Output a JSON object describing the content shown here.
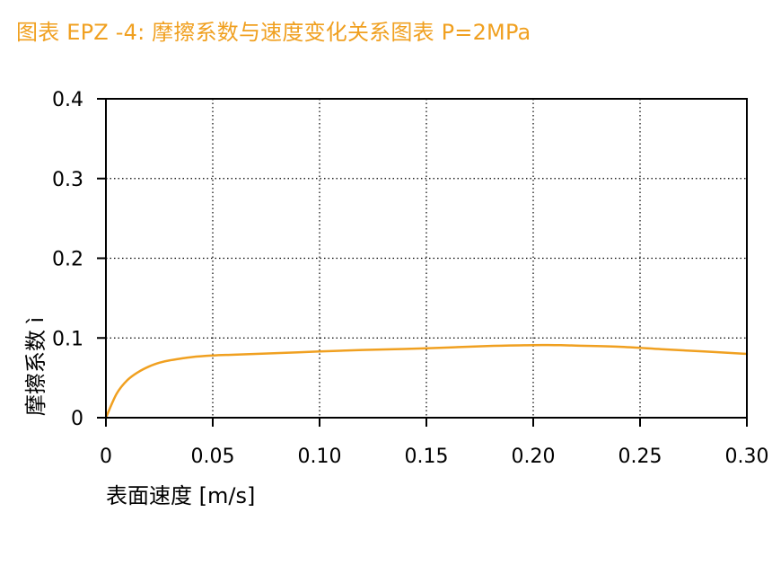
{
  "page": {
    "title": "图表   EPZ -4: 摩擦系数与速度变化关系图表 P=2MPa"
  },
  "colors": {
    "title": "#f0a020",
    "series": "#f0a020",
    "axis": "#000000",
    "grid": "#000000"
  },
  "chart_data": {
    "type": "line",
    "title": "图表   EPZ -4: 摩擦系数与速度变化关系图表 P=2MPa",
    "xlabel": "表面速度 [m/s]",
    "ylabel": "摩擦系数 ì",
    "xlim": [
      0,
      0.3
    ],
    "ylim": [
      0,
      0.4
    ],
    "x_ticks": [
      0,
      0.05,
      0.1,
      0.15,
      0.2,
      0.25,
      0.3
    ],
    "x_tick_labels": [
      "0",
      "0.05",
      "0.10",
      "0.15",
      "0.20",
      "0.25",
      "0.30"
    ],
    "y_ticks": [
      0,
      0.1,
      0.2,
      0.3,
      0.4
    ],
    "y_tick_labels": [
      "0",
      "0.1",
      "0.2",
      "0.3",
      "0.4"
    ],
    "grid": "dotted",
    "series": [
      {
        "color": "#f0a020",
        "x": [
          0,
          0.005,
          0.01,
          0.015,
          0.02,
          0.025,
          0.03,
          0.04,
          0.05,
          0.06,
          0.08,
          0.1,
          0.12,
          0.15,
          0.18,
          0.2,
          0.21,
          0.22,
          0.24,
          0.26,
          0.28,
          0.3
        ],
        "y": [
          0,
          0.03,
          0.047,
          0.057,
          0.064,
          0.069,
          0.072,
          0.076,
          0.078,
          0.079,
          0.081,
          0.083,
          0.085,
          0.087,
          0.09,
          0.091,
          0.091,
          0.0905,
          0.089,
          0.086,
          0.083,
          0.08
        ]
      }
    ]
  }
}
